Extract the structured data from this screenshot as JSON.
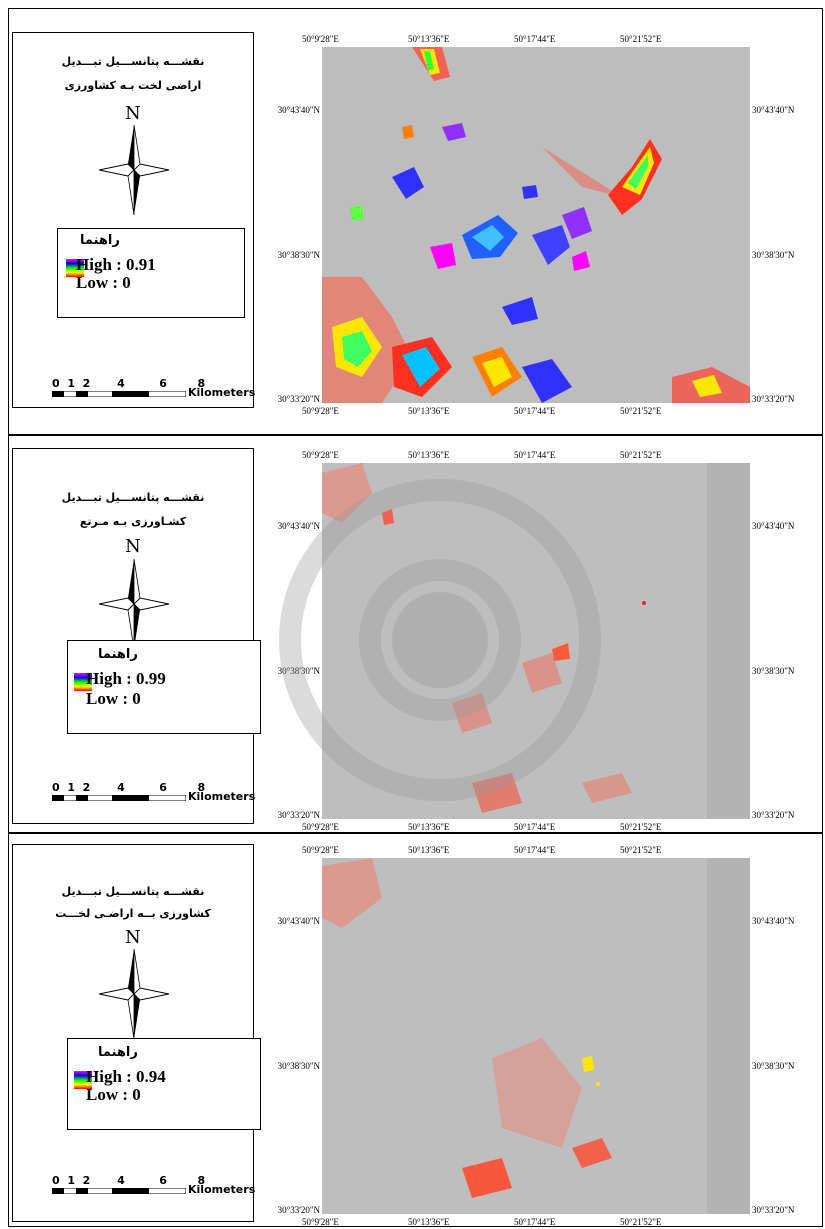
{
  "coords": {
    "lon": [
      "50°9'28\"E",
      "50°13'36\"E",
      "50°17'44\"E",
      "50°21'52\"E"
    ],
    "lat": [
      "30°43'40\"N",
      "30°38'30\"N",
      "30°33'20\"N"
    ]
  },
  "scale": {
    "ticks": [
      "0",
      "1",
      "2",
      "4",
      "6",
      "8"
    ],
    "unit": "Kilometers"
  },
  "north_label": "N",
  "legend_heading": "راهنما",
  "panels": [
    {
      "title1": "نقشـــه پتانســـیل تبـــدیل",
      "title2": "اراضی لخت بـه کشاورزی",
      "high": "High : 0.91",
      "low": "Low : 0"
    },
    {
      "title1": "نقشـــه پتانســـیل تبـــدیل",
      "title2": "کشـاورزی بـه مـرتع",
      "high": "High : 0.99",
      "low": "Low : 0"
    },
    {
      "title1": "نقشـــه پتانســـیل تبـــدیل",
      "title2": "کشاورزی بــه اراضـی لخـــت",
      "high": "High : 0.94",
      "low": "Low : 0"
    }
  ],
  "colors": {
    "map_bg": "#bdbdbd",
    "ramp": [
      "#ff00ff",
      "#0000ff",
      "#00ff00",
      "#ffff00",
      "#ff0000"
    ]
  }
}
